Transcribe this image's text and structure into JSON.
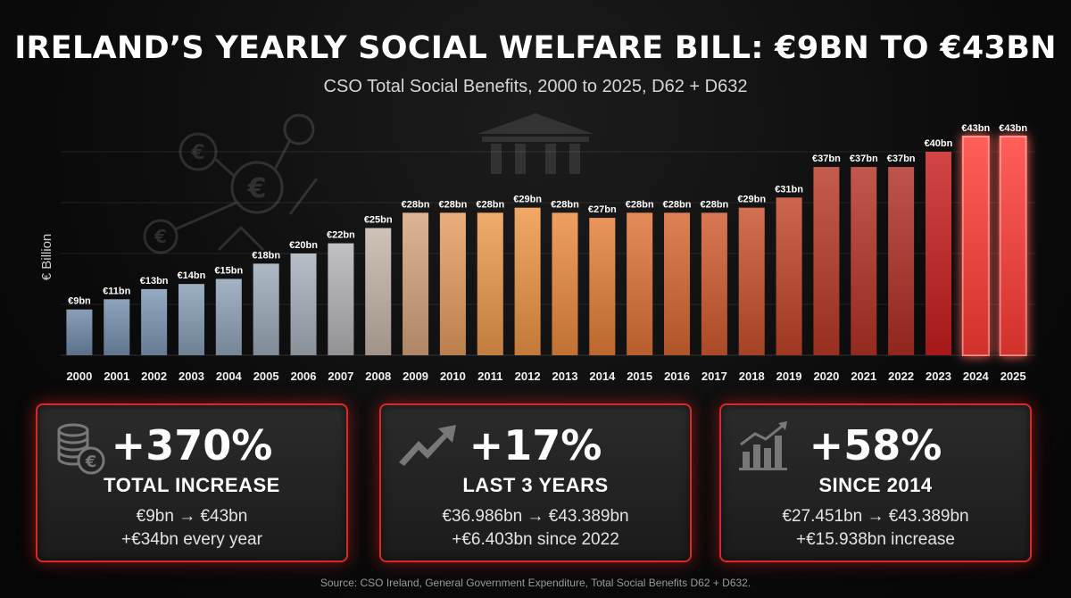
{
  "header": {
    "title": "IRELAND’S YEARLY SOCIAL WELFARE BILL: €9BN TO €43BN",
    "subtitle": "CSO Total Social Benefits, 2000 to 2025, D62 + D632"
  },
  "chart_data": {
    "type": "bar",
    "title": "IRELAND’S YEARLY SOCIAL WELFARE BILL: €9BN TO €43BN",
    "subtitle": "CSO Total Social Benefits, 2000 to 2025, D62 + D632",
    "xlabel": "",
    "ylabel": "€ Billion",
    "ylim": [
      0,
      50
    ],
    "grid": true,
    "categories": [
      "2000",
      "2001",
      "2002",
      "2003",
      "2004",
      "2005",
      "2006",
      "2007",
      "2008",
      "2009",
      "2010",
      "2011",
      "2012",
      "2013",
      "2014",
      "2015",
      "2016",
      "2017",
      "2018",
      "2019",
      "2020",
      "2021",
      "2022",
      "2023",
      "2024",
      "2025"
    ],
    "values": [
      9,
      11,
      13,
      14,
      15,
      18,
      20,
      22,
      25,
      28,
      28,
      28,
      29,
      28,
      27,
      28,
      28,
      28,
      29,
      31,
      37,
      37,
      37,
      40,
      43,
      43
    ],
    "data_labels": [
      "€9bn",
      "€11bn",
      "€13bn",
      "€14bn",
      "€15bn",
      "€18bn",
      "€20bn",
      "€22bn",
      "€25bn",
      "€28bn",
      "€28bn",
      "€28bn",
      "€29bn",
      "€28bn",
      "€27bn",
      "€28bn",
      "€28bn",
      "€28bn",
      "€29bn",
      "€31bn",
      "€37bn",
      "€37bn",
      "€37bn",
      "€40bn",
      "€43bn",
      "€43bn"
    ],
    "colors": [
      "#6f8aa8",
      "#7590ad",
      "#7d97b2",
      "#869db5",
      "#8fa3b8",
      "#9baab9",
      "#a6b0bb",
      "#b3b3b6",
      "#c4b4a6",
      "#d7a37d",
      "#e59b5f",
      "#ec984e",
      "#ee9445",
      "#ea8a3e",
      "#e47e39",
      "#de7235",
      "#d66631",
      "#cf5a2e",
      "#c8502b",
      "#c24428",
      "#b83826",
      "#b43324",
      "#b02e23",
      "#c91d1d",
      "#ff3b36",
      "#ff3b36"
    ],
    "highlight": [
      "2024",
      "2025"
    ]
  },
  "cards": [
    {
      "big": "+370%",
      "label": "TOTAL INCREASE",
      "line1": "€9bn → €43bn",
      "line2": "+€34bn every year",
      "icon": "coins-euro-icon"
    },
    {
      "big": "+17%",
      "label": "LAST 3 YEARS",
      "line1": "€36.986bn → €43.389bn",
      "line2": "+€6.403bn since 2022",
      "icon": "trend-arrow-icon"
    },
    {
      "big": "+58%",
      "label": "SINCE 2014",
      "line1": "€27.451bn → €43.389bn",
      "line2": "+€15.938bn increase",
      "icon": "bar-growth-icon"
    }
  ],
  "footer": {
    "source": "Source: CSO Ireland, General Government Expenditure, Total Social Benefits D62 + D632."
  }
}
